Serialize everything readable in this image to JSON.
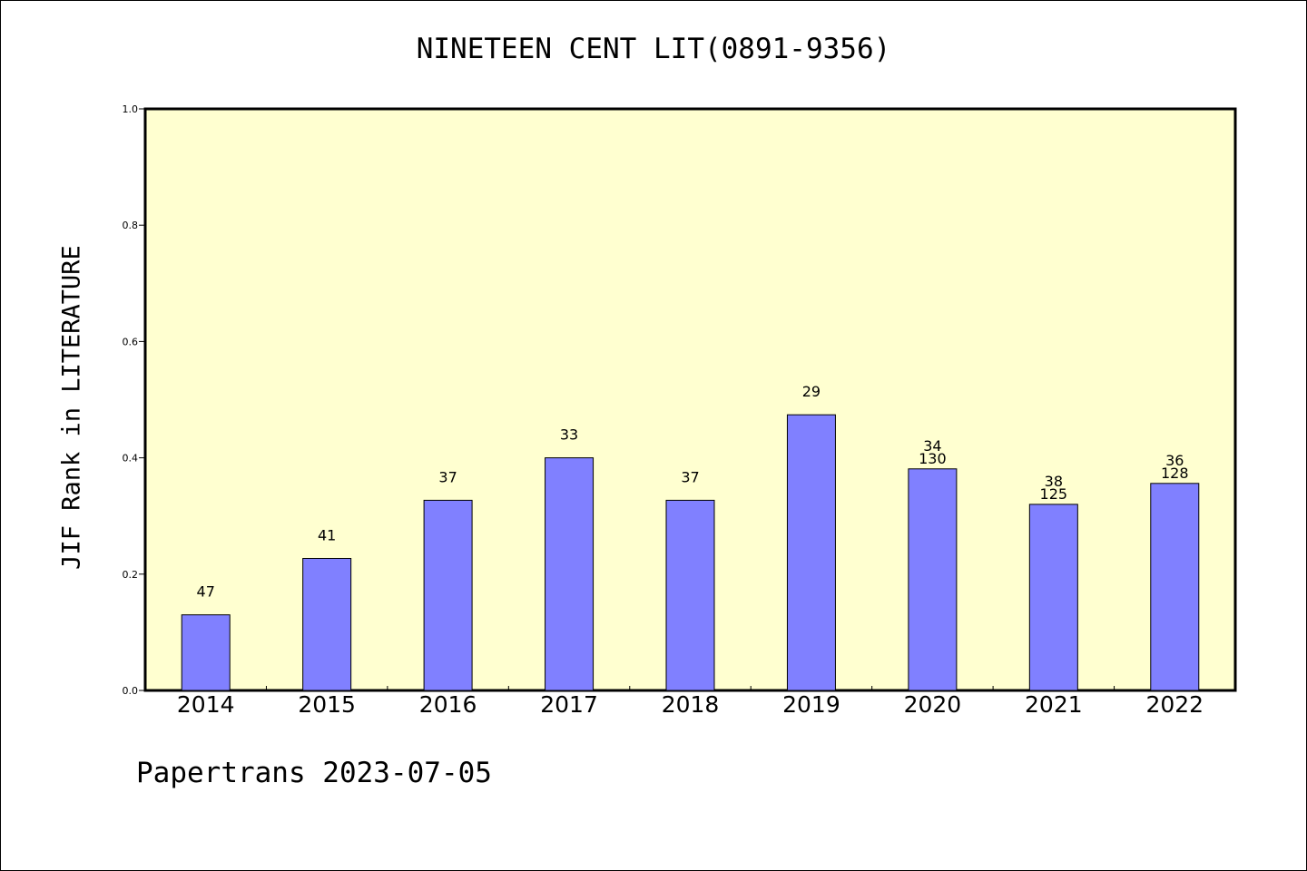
{
  "chart_data": {
    "type": "bar",
    "title": "NINETEEN CENT LIT(0891-9356)",
    "xlabel": "",
    "ylabel": "JIF Rank in LITERATURE",
    "ylim": [
      0,
      1.0
    ],
    "yticks": [
      "0.0",
      "0.2",
      "0.4",
      "0.6",
      "0.8",
      "1.0"
    ],
    "categories": [
      "2014",
      "2015",
      "2016",
      "2017",
      "2018",
      "2019",
      "2020",
      "2021",
      "2022"
    ],
    "values": [
      0.13,
      0.227,
      0.327,
      0.4,
      0.327,
      0.474,
      0.381,
      0.32,
      0.356
    ],
    "annotations": [
      [
        "47"
      ],
      [
        "41"
      ],
      [
        "37"
      ],
      [
        "33"
      ],
      [
        "37"
      ],
      [
        "29"
      ],
      [
        "34",
        "130"
      ],
      [
        "38",
        "125"
      ],
      [
        "36",
        "128"
      ]
    ],
    "grid": false,
    "colors": {
      "plot_background": "#ffffd0",
      "bar_fill": "#8080ff",
      "bar_stroke": "#000000"
    }
  },
  "footer": {
    "text": "Papertrans 2023-07-05"
  }
}
